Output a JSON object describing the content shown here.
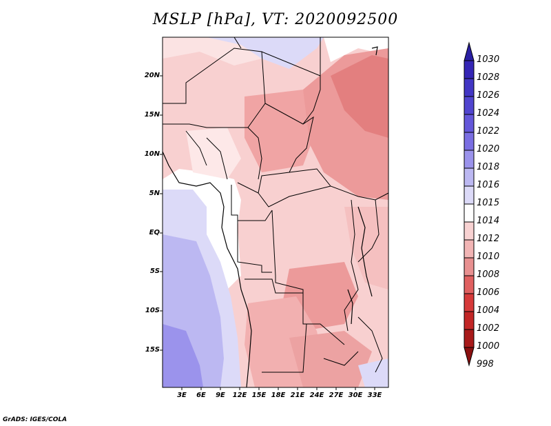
{
  "title": "MSLP [hPa], VT: 2020092500",
  "map": {
    "lat_labels": [
      "20N",
      "15N",
      "10N",
      "5N",
      "EQ",
      "5S",
      "10S",
      "15S"
    ],
    "lon_labels": [
      "3E",
      "6E",
      "9E",
      "12E",
      "15E",
      "18E",
      "21E",
      "24E",
      "27E",
      "30E",
      "33E"
    ]
  },
  "colorbar": {
    "labels": [
      "1030",
      "1028",
      "1026",
      "1024",
      "1022",
      "1020",
      "1018",
      "1016",
      "1015",
      "1014",
      "1012",
      "1010",
      "1008",
      "1006",
      "1004",
      "1002",
      "1000",
      "998"
    ],
    "colors": [
      "#2a1fa3",
      "#3526b5",
      "#4236c4",
      "#5145cf",
      "#6457da",
      "#7a6ee2",
      "#9b93ec",
      "#bcb8f2",
      "#dcdaf8",
      "#ffffff",
      "#f8d2d2",
      "#f2b5b5",
      "#e89090",
      "#e06060",
      "#d63a3a",
      "#c22626",
      "#a81a1a",
      "#8a1010"
    ]
  },
  "credit": "GrADS: IGES/COLA"
}
